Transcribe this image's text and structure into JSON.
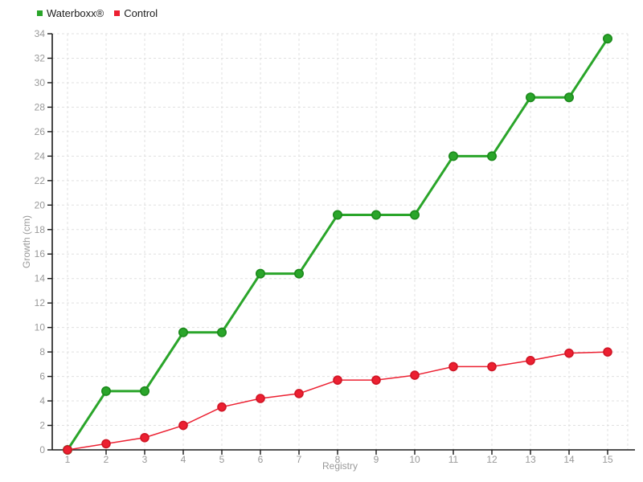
{
  "chart_data": {
    "type": "line",
    "title": "",
    "xlabel": "Registry",
    "ylabel": "Growth (cm)",
    "categories": [
      1,
      2,
      3,
      4,
      5,
      6,
      7,
      8,
      9,
      10,
      11,
      12,
      13,
      14,
      15
    ],
    "ylim": [
      0,
      34
    ],
    "ytick_step": 2,
    "grid": true,
    "grid_style": "dashed",
    "legend_position": "top-left",
    "series": [
      {
        "name": "Waterboxx®",
        "color": "#2aa52a",
        "marker_stroke": "#1b8a1b",
        "line_width": 3,
        "marker_radius": 5.2,
        "values": [
          0,
          4.8,
          4.8,
          9.6,
          9.6,
          14.4,
          14.4,
          19.2,
          19.2,
          19.2,
          24,
          24,
          28.8,
          28.8,
          33.6
        ]
      },
      {
        "name": "Control",
        "color": "#ec2031",
        "marker_stroke": "#d01525",
        "line_width": 1.5,
        "marker_radius": 5,
        "values": [
          0,
          0.5,
          1,
          2,
          3.5,
          4.2,
          4.6,
          5.7,
          5.7,
          6.1,
          6.8,
          6.8,
          7.3,
          7.9,
          8
        ]
      }
    ],
    "colors": {
      "axis_line": "#1a1a1a",
      "grid_line": "#e0e0e0",
      "tick_label": "#999999",
      "axis_title": "#999999",
      "legend_text": "#1c1c1c",
      "background": "#ffffff"
    }
  }
}
